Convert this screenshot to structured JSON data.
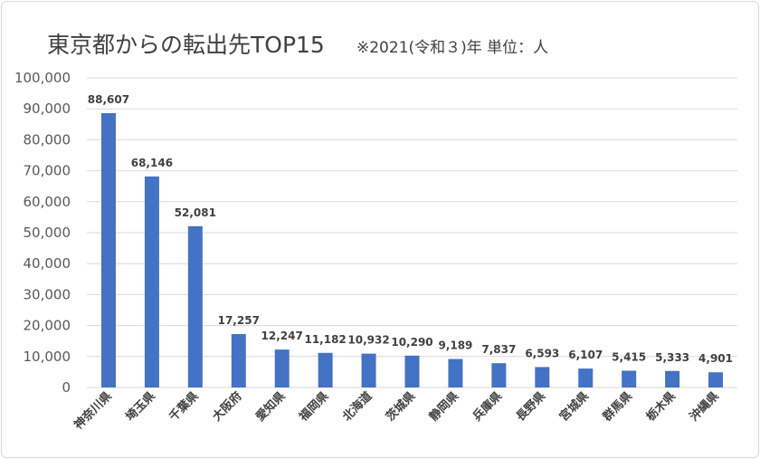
{
  "chart_data": {
    "type": "bar",
    "title": "東京都からの転出先TOP15",
    "subtitle": "※2021(令和３)年 単位：人",
    "categories": [
      "神奈川県",
      "埼玉県",
      "千葉県",
      "大阪府",
      "愛知県",
      "福岡県",
      "北海道",
      "茨城県",
      "静岡県",
      "兵庫県",
      "長野県",
      "宮城県",
      "群馬県",
      "栃木県",
      "沖縄県"
    ],
    "values": [
      88607,
      68146,
      52081,
      17257,
      12247,
      11182,
      10932,
      10290,
      9189,
      7837,
      6593,
      6107,
      5415,
      5333,
      4901
    ],
    "value_labels": [
      "88,607",
      "68,146",
      "52,081",
      "17,257",
      "12,247",
      "11,182",
      "10,932",
      "10,290",
      "9,189",
      "7,837",
      "6,593",
      "6,107",
      "5,415",
      "5,333",
      "4,901"
    ],
    "y_ticks": [
      0,
      10000,
      20000,
      30000,
      40000,
      50000,
      60000,
      70000,
      80000,
      90000,
      100000
    ],
    "y_tick_labels": [
      "0",
      "10,000",
      "20,000",
      "30,000",
      "40,000",
      "50,000",
      "60,000",
      "70,000",
      "80,000",
      "90,000",
      "100,000"
    ],
    "ylim": [
      0,
      100000
    ],
    "grid": true,
    "legend": "none",
    "bar_color": "#4472c4",
    "grid_color": "#d9d9d9"
  }
}
